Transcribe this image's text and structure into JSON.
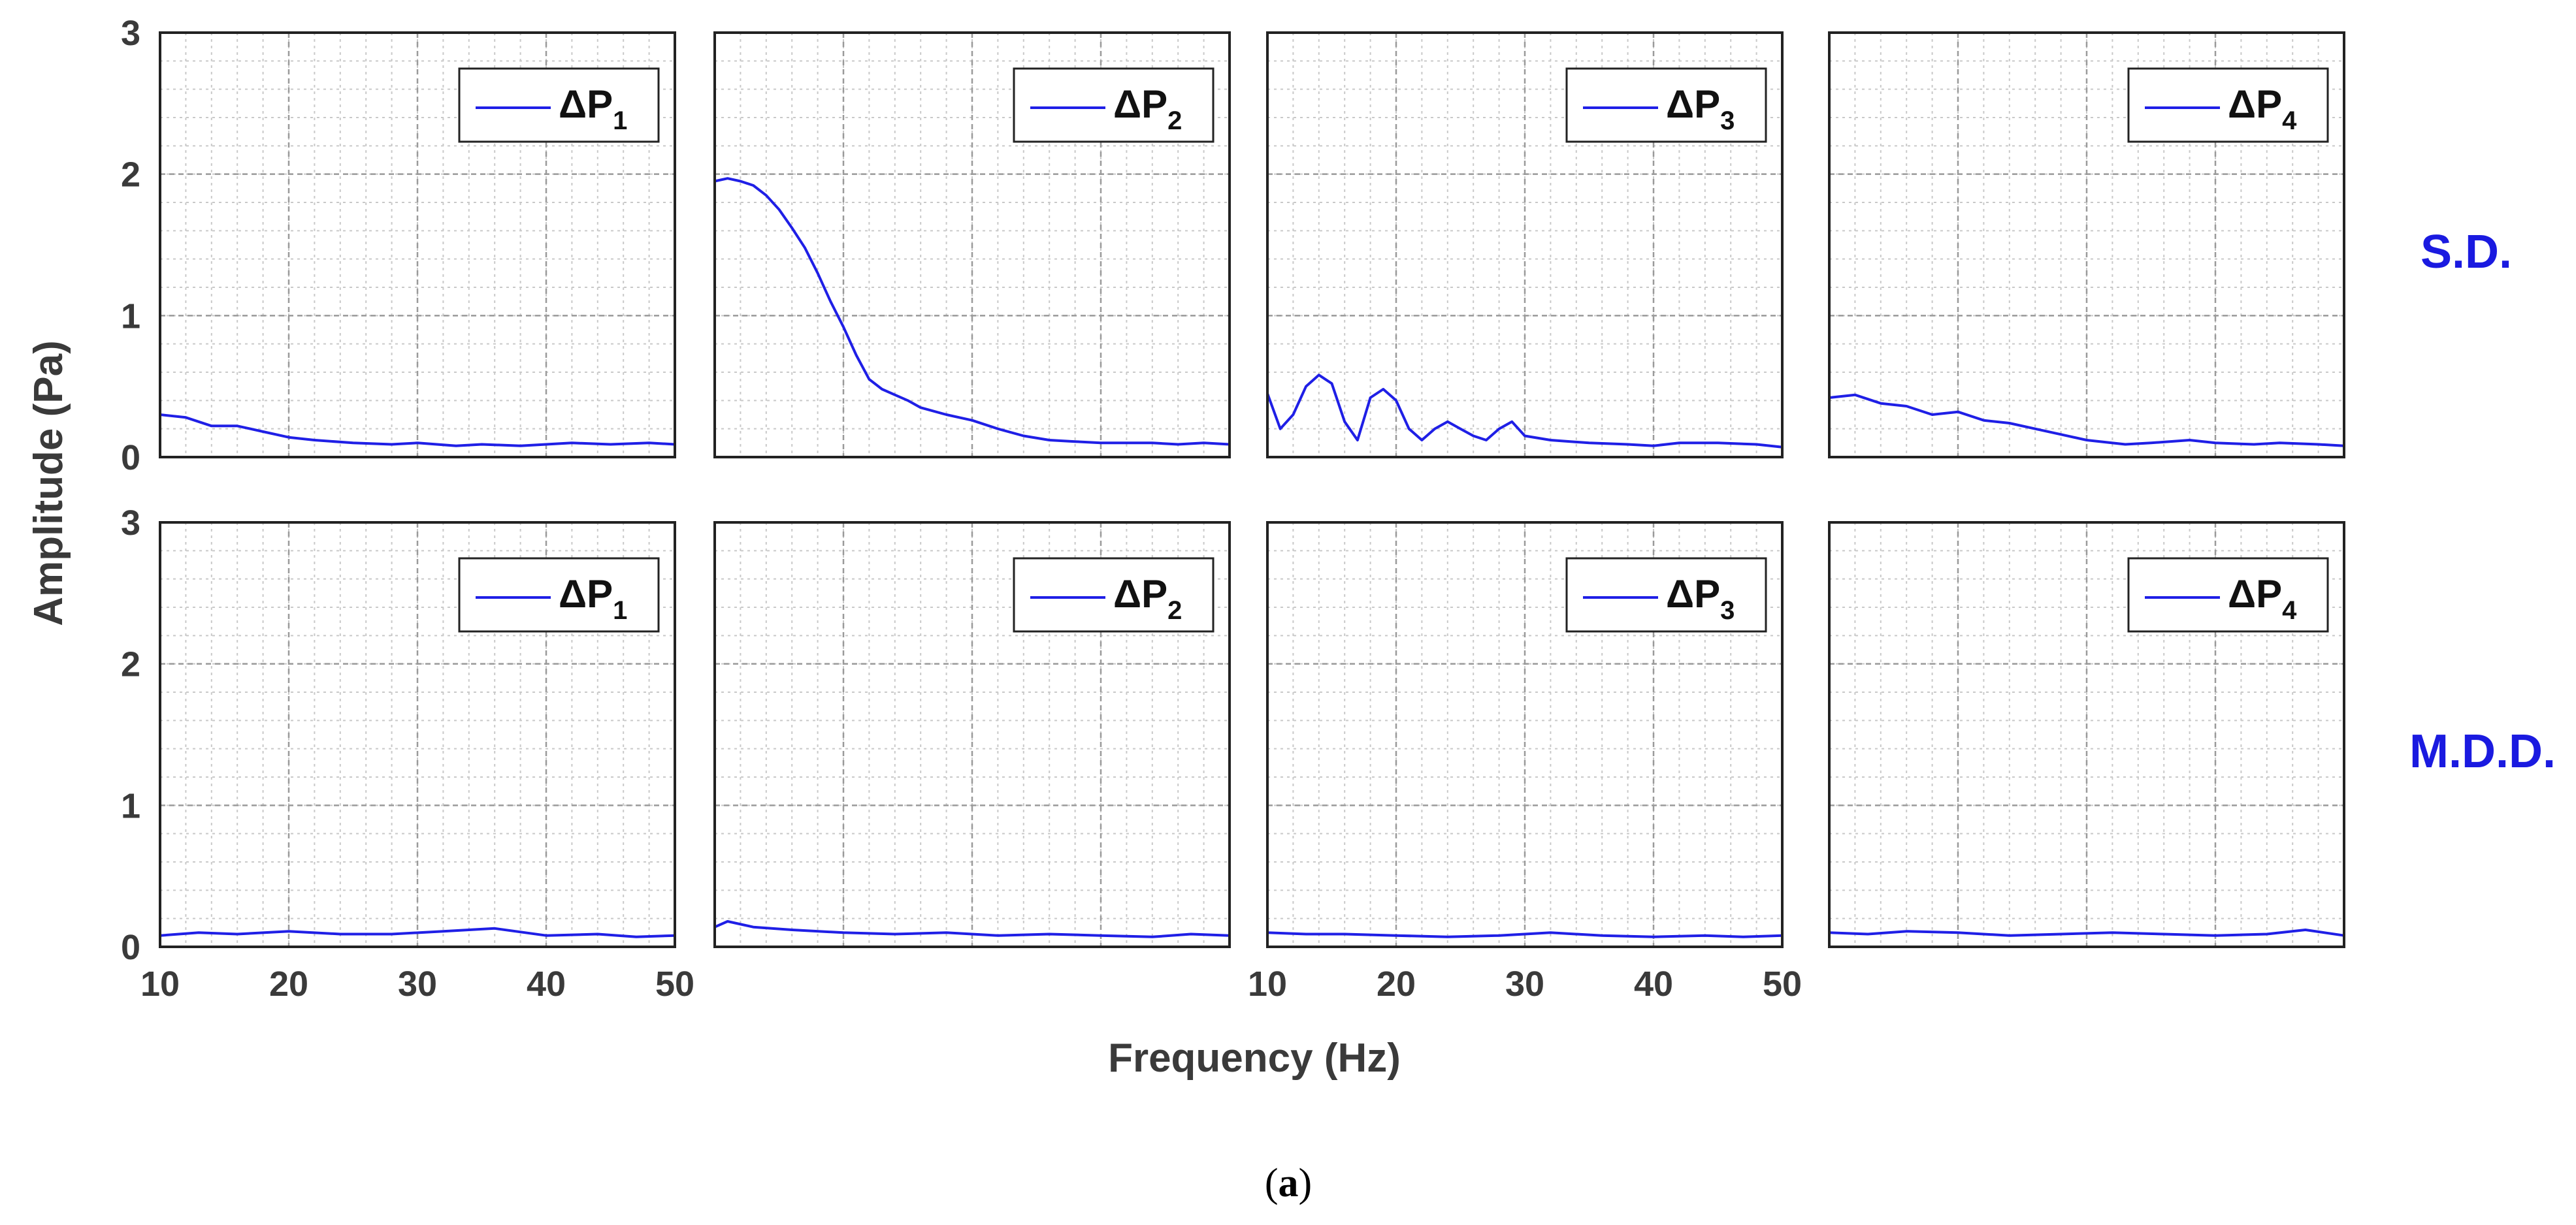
{
  "chart_data": {
    "type": "line",
    "layout": "2x4 grid of subplots",
    "ylabel": "Amplitude (Pa)",
    "xlabel": "Frequency (Hz)",
    "caption": {
      "open": "(",
      "letter": "a",
      "close": ")"
    },
    "x_range": [
      10,
      50
    ],
    "y_range": [
      0,
      3
    ],
    "x_ticks": [
      "10",
      "20",
      "30",
      "40",
      "50"
    ],
    "y_ticks": [
      "0",
      "1",
      "2",
      "3"
    ],
    "grid": "major and minor",
    "line_color": "#1f1fe6",
    "row_labels": [
      "S.D.",
      "M.D.D."
    ],
    "legend_symbol": "ΔP",
    "rows": [
      {
        "label": "S.D.",
        "panels": [
          {
            "legend": "1",
            "series": {
              "x": [
                10,
                12,
                14,
                16,
                18,
                20,
                22,
                25,
                28,
                30,
                33,
                35,
                38,
                40,
                42,
                45,
                48,
                50
              ],
              "y": [
                0.3,
                0.28,
                0.22,
                0.22,
                0.18,
                0.14,
                0.12,
                0.1,
                0.09,
                0.1,
                0.08,
                0.09,
                0.08,
                0.09,
                0.1,
                0.09,
                0.1,
                0.09
              ]
            }
          },
          {
            "legend": "2",
            "series": {
              "x": [
                10,
                11,
                12,
                13,
                14,
                15,
                16,
                17,
                18,
                19,
                20,
                21,
                22,
                23,
                24,
                25,
                26,
                28,
                30,
                32,
                34,
                36,
                38,
                40,
                42,
                44,
                46,
                48,
                50
              ],
              "y": [
                1.95,
                1.97,
                1.95,
                1.92,
                1.85,
                1.75,
                1.62,
                1.48,
                1.3,
                1.1,
                0.92,
                0.72,
                0.55,
                0.48,
                0.44,
                0.4,
                0.35,
                0.3,
                0.26,
                0.2,
                0.15,
                0.12,
                0.11,
                0.1,
                0.1,
                0.1,
                0.09,
                0.1,
                0.09
              ]
            }
          },
          {
            "legend": "3",
            "series": {
              "x": [
                10,
                11,
                12,
                13,
                14,
                15,
                16,
                17,
                18,
                19,
                20,
                21,
                22,
                23,
                24,
                25,
                26,
                27,
                28,
                29,
                30,
                32,
                35,
                38,
                40,
                42,
                45,
                48,
                50
              ],
              "y": [
                0.45,
                0.2,
                0.3,
                0.5,
                0.58,
                0.52,
                0.25,
                0.12,
                0.42,
                0.48,
                0.4,
                0.2,
                0.12,
                0.2,
                0.25,
                0.2,
                0.15,
                0.12,
                0.2,
                0.25,
                0.15,
                0.12,
                0.1,
                0.09,
                0.08,
                0.1,
                0.1,
                0.09,
                0.07
              ]
            }
          },
          {
            "legend": "4",
            "series": {
              "x": [
                10,
                12,
                14,
                16,
                18,
                20,
                22,
                24,
                26,
                28,
                30,
                33,
                35,
                38,
                40,
                43,
                45,
                48,
                50
              ],
              "y": [
                0.42,
                0.44,
                0.38,
                0.36,
                0.3,
                0.32,
                0.26,
                0.24,
                0.2,
                0.16,
                0.12,
                0.09,
                0.1,
                0.12,
                0.1,
                0.09,
                0.1,
                0.09,
                0.08
              ]
            }
          }
        ]
      },
      {
        "label": "M.D.D.",
        "panels": [
          {
            "legend": "1",
            "series": {
              "x": [
                10,
                13,
                16,
                20,
                24,
                28,
                32,
                36,
                40,
                44,
                47,
                50
              ],
              "y": [
                0.08,
                0.1,
                0.09,
                0.11,
                0.09,
                0.09,
                0.11,
                0.13,
                0.08,
                0.09,
                0.07,
                0.08
              ]
            }
          },
          {
            "legend": "2",
            "series": {
              "x": [
                10,
                11,
                13,
                16,
                20,
                24,
                28,
                32,
                36,
                40,
                44,
                47,
                50
              ],
              "y": [
                0.14,
                0.18,
                0.14,
                0.12,
                0.1,
                0.09,
                0.1,
                0.08,
                0.09,
                0.08,
                0.07,
                0.09,
                0.08
              ]
            }
          },
          {
            "legend": "3",
            "series": {
              "x": [
                10,
                13,
                16,
                20,
                24,
                28,
                32,
                36,
                40,
                44,
                47,
                50
              ],
              "y": [
                0.1,
                0.09,
                0.09,
                0.08,
                0.07,
                0.08,
                0.1,
                0.08,
                0.07,
                0.08,
                0.07,
                0.08
              ]
            }
          },
          {
            "legend": "4",
            "series": {
              "x": [
                10,
                13,
                16,
                20,
                24,
                28,
                32,
                36,
                40,
                44,
                47,
                50
              ],
              "y": [
                0.1,
                0.09,
                0.11,
                0.1,
                0.08,
                0.09,
                0.1,
                0.09,
                0.08,
                0.09,
                0.12,
                0.08
              ]
            }
          }
        ]
      }
    ]
  }
}
